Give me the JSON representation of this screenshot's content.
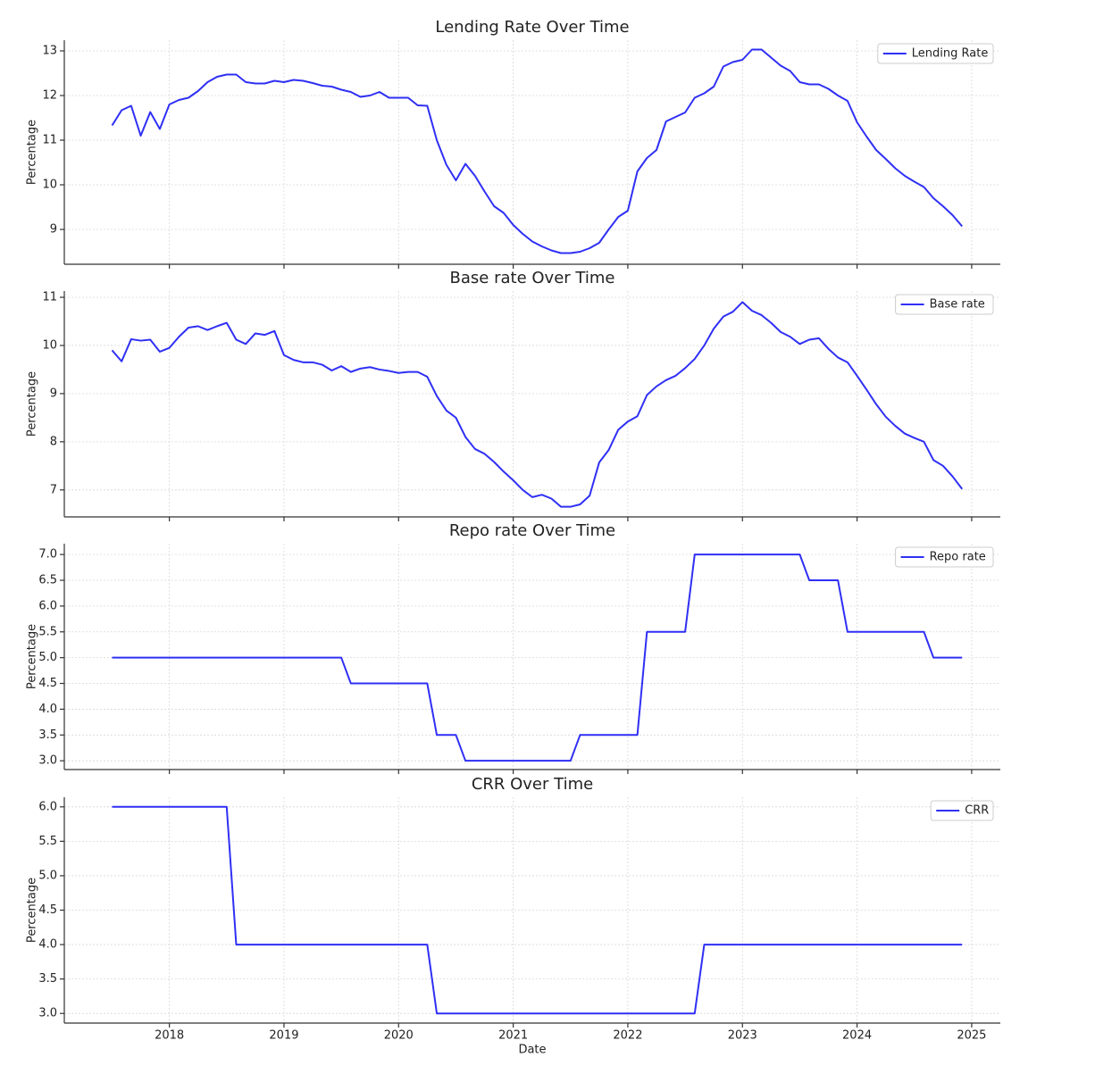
{
  "chart_data": [
    {
      "type": "line",
      "title": "Lending Rate Over Time",
      "ylabel": "Percentage",
      "x": [
        "2017-07",
        "2017-08",
        "2017-09",
        "2017-10",
        "2017-11",
        "2017-12",
        "2018-01",
        "2018-02",
        "2018-03",
        "2018-04",
        "2018-05",
        "2018-06",
        "2018-07",
        "2018-08",
        "2018-09",
        "2018-10",
        "2018-11",
        "2018-12",
        "2019-01",
        "2019-02",
        "2019-03",
        "2019-04",
        "2019-05",
        "2019-06",
        "2019-07",
        "2019-08",
        "2019-09",
        "2019-10",
        "2019-11",
        "2019-12",
        "2020-01",
        "2020-02",
        "2020-03",
        "2020-04",
        "2020-05",
        "2020-06",
        "2020-07",
        "2020-08",
        "2020-09",
        "2020-10",
        "2020-11",
        "2020-12",
        "2021-01",
        "2021-02",
        "2021-03",
        "2021-04",
        "2021-05",
        "2021-06",
        "2021-07",
        "2021-08",
        "2021-09",
        "2021-10",
        "2021-11",
        "2021-12",
        "2022-01",
        "2022-02",
        "2022-03",
        "2022-04",
        "2022-05",
        "2022-06",
        "2022-07",
        "2022-08",
        "2022-09",
        "2022-10",
        "2022-11",
        "2022-12",
        "2023-01",
        "2023-02",
        "2023-03",
        "2023-04",
        "2023-05",
        "2023-06",
        "2023-07",
        "2023-08",
        "2023-09",
        "2023-10",
        "2023-11",
        "2023-12",
        "2024-01",
        "2024-02",
        "2024-03",
        "2024-04",
        "2024-05",
        "2024-06",
        "2024-07",
        "2024-08",
        "2024-09",
        "2024-10",
        "2024-11",
        "2024-12"
      ],
      "series": [
        {
          "name": "Lending Rate",
          "color": "#2f2ff5",
          "values": [
            11.33,
            11.67,
            11.77,
            11.1,
            11.63,
            11.25,
            11.8,
            11.9,
            11.95,
            12.1,
            12.3,
            12.42,
            12.47,
            12.47,
            12.3,
            12.27,
            12.27,
            12.33,
            12.3,
            12.35,
            12.33,
            12.28,
            12.22,
            12.2,
            12.13,
            12.08,
            11.97,
            12.0,
            12.08,
            11.95,
            11.95,
            11.95,
            11.78,
            11.77,
            11.0,
            10.45,
            10.1,
            10.47,
            10.2,
            9.85,
            9.52,
            9.37,
            9.1,
            8.9,
            8.73,
            8.62,
            8.53,
            8.47,
            8.47,
            8.5,
            8.58,
            8.7,
            9.0,
            9.28,
            9.42,
            10.3,
            10.6,
            10.78,
            11.42,
            11.52,
            11.62,
            11.95,
            12.05,
            12.2,
            12.65,
            12.75,
            12.8,
            13.03,
            13.03,
            12.85,
            12.67,
            12.55,
            12.3,
            12.25,
            12.25,
            12.15,
            12.0,
            11.88,
            11.4,
            11.08,
            10.78,
            10.58,
            10.37,
            10.2,
            10.07,
            9.95,
            9.7,
            9.52,
            9.32,
            9.07
          ]
        }
      ],
      "xlim": [
        "2017-02",
        "2025-04"
      ],
      "ylim": [
        8.22,
        13.24
      ],
      "yticks": [
        9,
        10,
        11,
        12,
        13
      ],
      "grid": true,
      "legend": "upper right"
    },
    {
      "type": "line",
      "title": "Base rate Over Time",
      "ylabel": "Percentage",
      "x": [
        "2017-07",
        "2017-08",
        "2017-09",
        "2017-10",
        "2017-11",
        "2017-12",
        "2018-01",
        "2018-02",
        "2018-03",
        "2018-04",
        "2018-05",
        "2018-06",
        "2018-07",
        "2018-08",
        "2018-09",
        "2018-10",
        "2018-11",
        "2018-12",
        "2019-01",
        "2019-02",
        "2019-03",
        "2019-04",
        "2019-05",
        "2019-06",
        "2019-07",
        "2019-08",
        "2019-09",
        "2019-10",
        "2019-11",
        "2019-12",
        "2020-01",
        "2020-02",
        "2020-03",
        "2020-04",
        "2020-05",
        "2020-06",
        "2020-07",
        "2020-08",
        "2020-09",
        "2020-10",
        "2020-11",
        "2020-12",
        "2021-01",
        "2021-02",
        "2021-03",
        "2021-04",
        "2021-05",
        "2021-06",
        "2021-07",
        "2021-08",
        "2021-09",
        "2021-10",
        "2021-11",
        "2021-12",
        "2022-01",
        "2022-02",
        "2022-03",
        "2022-04",
        "2022-05",
        "2022-06",
        "2022-07",
        "2022-08",
        "2022-09",
        "2022-10",
        "2022-11",
        "2022-12",
        "2023-01",
        "2023-02",
        "2023-03",
        "2023-04",
        "2023-05",
        "2023-06",
        "2023-07",
        "2023-08",
        "2023-09",
        "2023-10",
        "2023-11",
        "2023-12",
        "2024-01",
        "2024-02",
        "2024-03",
        "2024-04",
        "2024-05",
        "2024-06",
        "2024-07",
        "2024-08",
        "2024-09",
        "2024-10",
        "2024-11",
        "2024-12"
      ],
      "series": [
        {
          "name": "Base rate",
          "color": "#2f2ff5",
          "values": [
            9.9,
            9.67,
            10.13,
            10.1,
            10.12,
            9.87,
            9.95,
            10.18,
            10.37,
            10.4,
            10.32,
            10.4,
            10.47,
            10.12,
            10.03,
            10.25,
            10.22,
            10.3,
            9.8,
            9.7,
            9.65,
            9.65,
            9.6,
            9.48,
            9.57,
            9.45,
            9.52,
            9.55,
            9.5,
            9.47,
            9.43,
            9.45,
            9.45,
            9.35,
            8.95,
            8.65,
            8.5,
            8.1,
            7.85,
            7.75,
            7.58,
            7.38,
            7.2,
            7.0,
            6.85,
            6.9,
            6.82,
            6.65,
            6.65,
            6.7,
            6.88,
            7.57,
            7.83,
            8.25,
            8.42,
            8.53,
            8.97,
            9.15,
            9.28,
            9.37,
            9.53,
            9.72,
            10.0,
            10.35,
            10.6,
            10.7,
            10.9,
            10.72,
            10.63,
            10.47,
            10.28,
            10.18,
            10.03,
            10.12,
            10.15,
            9.93,
            9.75,
            9.65,
            9.37,
            9.08,
            8.78,
            8.52,
            8.33,
            8.17,
            8.08,
            8.0,
            7.62,
            7.5,
            7.28,
            7.02
          ]
        }
      ],
      "xlim": [
        "2017-02",
        "2025-04"
      ],
      "ylim": [
        6.44,
        11.13
      ],
      "yticks": [
        7,
        8,
        9,
        10,
        11
      ],
      "grid": true,
      "legend": "upper right"
    },
    {
      "type": "line",
      "title": "Repo rate Over Time",
      "ylabel": "Percentage",
      "x": [
        "2017-07",
        "2017-08",
        "2017-09",
        "2017-10",
        "2017-11",
        "2017-12",
        "2018-01",
        "2018-02",
        "2018-03",
        "2018-04",
        "2018-05",
        "2018-06",
        "2018-07",
        "2018-08",
        "2018-09",
        "2018-10",
        "2018-11",
        "2018-12",
        "2019-01",
        "2019-02",
        "2019-03",
        "2019-04",
        "2019-05",
        "2019-06",
        "2019-07",
        "2019-08",
        "2019-09",
        "2019-10",
        "2019-11",
        "2019-12",
        "2020-01",
        "2020-02",
        "2020-03",
        "2020-04",
        "2020-05",
        "2020-06",
        "2020-07",
        "2020-08",
        "2020-09",
        "2020-10",
        "2020-11",
        "2020-12",
        "2021-01",
        "2021-02",
        "2021-03",
        "2021-04",
        "2021-05",
        "2021-06",
        "2021-07",
        "2021-08",
        "2021-09",
        "2021-10",
        "2021-11",
        "2021-12",
        "2022-01",
        "2022-02",
        "2022-03",
        "2022-04",
        "2022-05",
        "2022-06",
        "2022-07",
        "2022-08",
        "2022-09",
        "2022-10",
        "2022-11",
        "2022-12",
        "2023-01",
        "2023-02",
        "2023-03",
        "2023-04",
        "2023-05",
        "2023-06",
        "2023-07",
        "2023-08",
        "2023-09",
        "2023-10",
        "2023-11",
        "2023-12",
        "2024-01",
        "2024-02",
        "2024-03",
        "2024-04",
        "2024-05",
        "2024-06",
        "2024-07",
        "2024-08",
        "2024-09",
        "2024-10",
        "2024-11",
        "2024-12"
      ],
      "series": [
        {
          "name": "Repo rate",
          "color": "#2f2ff5",
          "values": [
            5,
            5,
            5,
            5,
            5,
            5,
            5,
            5,
            5,
            5,
            5,
            5,
            5,
            5,
            5,
            5,
            5,
            5,
            5,
            5,
            5,
            5,
            5,
            5,
            5,
            4.5,
            4.5,
            4.5,
            4.5,
            4.5,
            4.5,
            4.5,
            4.5,
            4.5,
            3.5,
            3.5,
            3.5,
            3,
            3,
            3,
            3,
            3,
            3,
            3,
            3,
            3,
            3,
            3,
            3,
            3.5,
            3.5,
            3.5,
            3.5,
            3.5,
            3.5,
            3.5,
            5.5,
            5.5,
            5.5,
            5.5,
            5.5,
            7,
            7,
            7,
            7,
            7,
            7,
            7,
            7,
            7,
            7,
            7,
            7,
            6.5,
            6.5,
            6.5,
            6.5,
            5.5,
            5.5,
            5.5,
            5.5,
            5.5,
            5.5,
            5.5,
            5.5,
            5.5,
            5,
            5,
            5,
            5
          ]
        }
      ],
      "xlim": [
        "2017-02",
        "2025-04"
      ],
      "ylim": [
        2.83,
        7.21
      ],
      "yticks": [
        {
          "value": 3,
          "label": "3.0"
        },
        {
          "value": 3.5,
          "label": "3.5"
        },
        {
          "value": 4,
          "label": "4.0"
        },
        {
          "value": 4.5,
          "label": "4.5"
        },
        {
          "value": 5,
          "label": "5.0"
        },
        {
          "value": 5.5,
          "label": "5.5"
        },
        {
          "value": 6,
          "label": "6.0"
        },
        {
          "value": 6.5,
          "label": "6.5"
        },
        {
          "value": 7,
          "label": "7.0"
        }
      ],
      "grid": true,
      "legend": "upper right"
    },
    {
      "type": "line",
      "title": "CRR Over Time",
      "ylabel": "Percentage",
      "xlabel": "Date",
      "x": [
        "2017-07",
        "2017-08",
        "2017-09",
        "2017-10",
        "2017-11",
        "2017-12",
        "2018-01",
        "2018-02",
        "2018-03",
        "2018-04",
        "2018-05",
        "2018-06",
        "2018-07",
        "2018-08",
        "2018-09",
        "2018-10",
        "2018-11",
        "2018-12",
        "2019-01",
        "2019-02",
        "2019-03",
        "2019-04",
        "2019-05",
        "2019-06",
        "2019-07",
        "2019-08",
        "2019-09",
        "2019-10",
        "2019-11",
        "2019-12",
        "2020-01",
        "2020-02",
        "2020-03",
        "2020-04",
        "2020-05",
        "2020-06",
        "2020-07",
        "2020-08",
        "2020-09",
        "2020-10",
        "2020-11",
        "2020-12",
        "2021-01",
        "2021-02",
        "2021-03",
        "2021-04",
        "2021-05",
        "2021-06",
        "2021-07",
        "2021-08",
        "2021-09",
        "2021-10",
        "2021-11",
        "2021-12",
        "2022-01",
        "2022-02",
        "2022-03",
        "2022-04",
        "2022-05",
        "2022-06",
        "2022-07",
        "2022-08",
        "2022-09",
        "2022-10",
        "2022-11",
        "2022-12",
        "2023-01",
        "2023-02",
        "2023-03",
        "2023-04",
        "2023-05",
        "2023-06",
        "2023-07",
        "2023-08",
        "2023-09",
        "2023-10",
        "2023-11",
        "2023-12",
        "2024-01",
        "2024-02",
        "2024-03",
        "2024-04",
        "2024-05",
        "2024-06",
        "2024-07",
        "2024-08",
        "2024-09",
        "2024-10",
        "2024-11",
        "2024-12"
      ],
      "series": [
        {
          "name": "CRR",
          "color": "#2f2ff5",
          "values": [
            6,
            6,
            6,
            6,
            6,
            6,
            6,
            6,
            6,
            6,
            6,
            6,
            6,
            4,
            4,
            4,
            4,
            4,
            4,
            4,
            4,
            4,
            4,
            4,
            4,
            4,
            4,
            4,
            4,
            4,
            4,
            4,
            4,
            4,
            3,
            3,
            3,
            3,
            3,
            3,
            3,
            3,
            3,
            3,
            3,
            3,
            3,
            3,
            3,
            3,
            3,
            3,
            3,
            3,
            3,
            3,
            3,
            3,
            3,
            3,
            3,
            3,
            4,
            4,
            4,
            4,
            4,
            4,
            4,
            4,
            4,
            4,
            4,
            4,
            4,
            4,
            4,
            4,
            4,
            4,
            4,
            4,
            4,
            4,
            4,
            4,
            4,
            4,
            4,
            4
          ]
        }
      ],
      "xlim": [
        "2017-02",
        "2025-04"
      ],
      "ylim": [
        2.86,
        6.14
      ],
      "yticks": [
        {
          "value": 3,
          "label": "3.0"
        },
        {
          "value": 3.5,
          "label": "3.5"
        },
        {
          "value": 4,
          "label": "4.0"
        },
        {
          "value": 4.5,
          "label": "4.5"
        },
        {
          "value": 5,
          "label": "5.0"
        },
        {
          "value": 5.5,
          "label": "5.5"
        },
        {
          "value": 6,
          "label": "6.0"
        }
      ],
      "xticks": [
        {
          "value": "2018-01",
          "label": "2018"
        },
        {
          "value": "2019-01",
          "label": "2019"
        },
        {
          "value": "2020-01",
          "label": "2020"
        },
        {
          "value": "2021-01",
          "label": "2021"
        },
        {
          "value": "2022-01",
          "label": "2022"
        },
        {
          "value": "2023-01",
          "label": "2023"
        },
        {
          "value": "2024-01",
          "label": "2024"
        },
        {
          "value": "2025-01",
          "label": "2025"
        }
      ],
      "grid": true,
      "legend": "upper right"
    }
  ]
}
